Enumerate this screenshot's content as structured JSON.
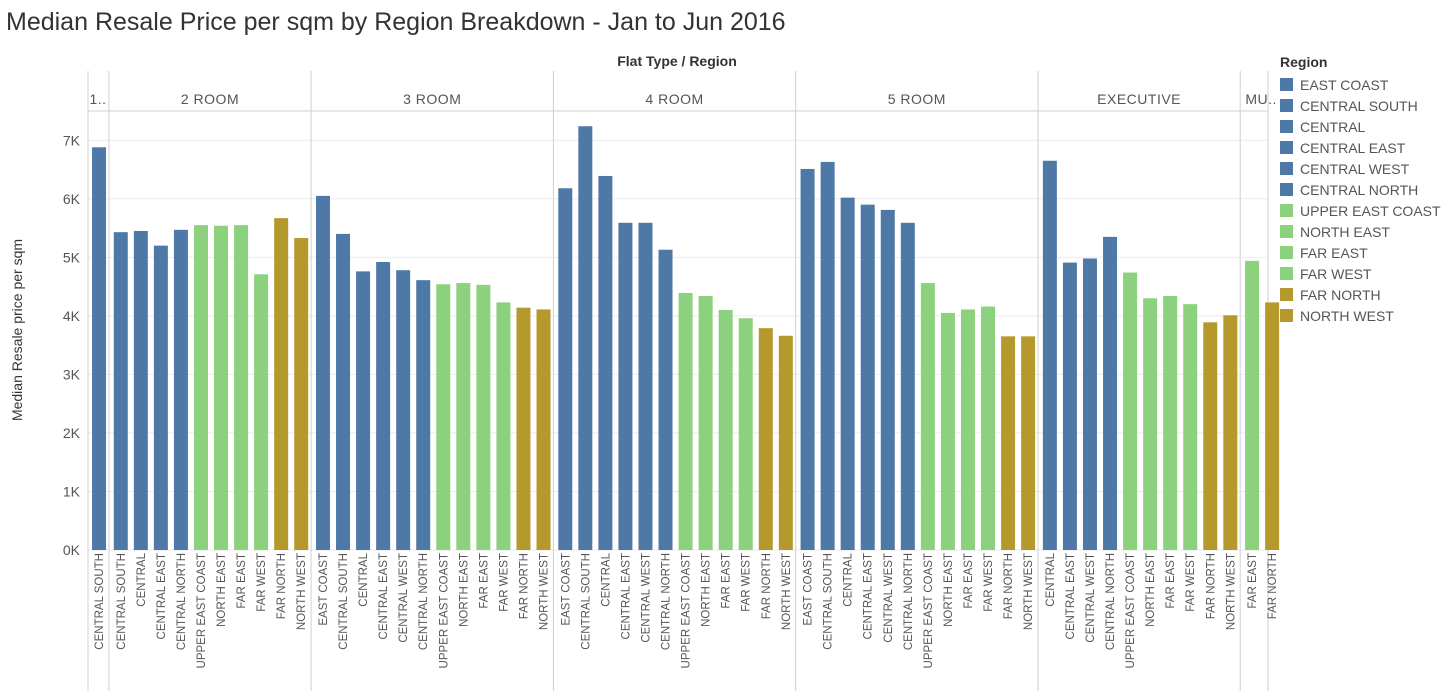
{
  "title": "Median Resale Price per sqm by Region Breakdown - Jan to Jun 2016",
  "header_label": "Flat Type  /  Region",
  "colors": {
    "blue": "#4e79a7",
    "green": "#8cd17d",
    "gold": "#b6992d",
    "grid": "#ebebeb",
    "divider": "#d0d0d0",
    "text": "#555555"
  },
  "legend": {
    "title": "Region",
    "items": [
      {
        "label": "EAST COAST",
        "color": "#4e79a7"
      },
      {
        "label": "CENTRAL SOUTH",
        "color": "#4e79a7"
      },
      {
        "label": "CENTRAL",
        "color": "#4e79a7"
      },
      {
        "label": "CENTRAL EAST",
        "color": "#4e79a7"
      },
      {
        "label": "CENTRAL WEST",
        "color": "#4e79a7"
      },
      {
        "label": "CENTRAL NORTH",
        "color": "#4e79a7"
      },
      {
        "label": "UPPER EAST COAST",
        "color": "#8cd17d"
      },
      {
        "label": "NORTH EAST",
        "color": "#8cd17d"
      },
      {
        "label": "FAR EAST",
        "color": "#8cd17d"
      },
      {
        "label": "FAR WEST",
        "color": "#8cd17d"
      },
      {
        "label": "FAR NORTH",
        "color": "#b6992d"
      },
      {
        "label": "NORTH WEST",
        "color": "#b6992d"
      }
    ]
  },
  "chart_data": {
    "type": "bar",
    "title": "Median Resale Price per sqm by Region Breakdown - Jan to Jun 2016",
    "xlabel": "Flat Type  /  Region",
    "ylabel": "Median Resale price per sqm",
    "ylim": [
      0,
      7500
    ],
    "yticks": [
      0,
      1000,
      2000,
      3000,
      4000,
      5000,
      6000,
      7000
    ],
    "ytick_labels": [
      "0K",
      "1K",
      "2K",
      "3K",
      "4K",
      "5K",
      "6K",
      "7K"
    ],
    "grid": true,
    "legend_position": "right",
    "groups": [
      {
        "name": "1..",
        "bars": [
          {
            "region": "CENTRAL SOUTH",
            "value": 6880
          }
        ]
      },
      {
        "name": "2 ROOM",
        "bars": [
          {
            "region": "CENTRAL SOUTH",
            "value": 5430
          },
          {
            "region": "CENTRAL",
            "value": 5450
          },
          {
            "region": "CENTRAL EAST",
            "value": 5200
          },
          {
            "region": "CENTRAL NORTH",
            "value": 5470
          },
          {
            "region": "UPPER EAST COAST",
            "value": 5550
          },
          {
            "region": "NORTH EAST",
            "value": 5540
          },
          {
            "region": "FAR EAST",
            "value": 5550
          },
          {
            "region": "FAR WEST",
            "value": 4710
          },
          {
            "region": "FAR NORTH",
            "value": 5670
          },
          {
            "region": "NORTH WEST",
            "value": 5330
          }
        ]
      },
      {
        "name": "3 ROOM",
        "bars": [
          {
            "region": "EAST COAST",
            "value": 6050
          },
          {
            "region": "CENTRAL SOUTH",
            "value": 5400
          },
          {
            "region": "CENTRAL",
            "value": 4760
          },
          {
            "region": "CENTRAL EAST",
            "value": 4920
          },
          {
            "region": "CENTRAL WEST",
            "value": 4780
          },
          {
            "region": "CENTRAL NORTH",
            "value": 4610
          },
          {
            "region": "UPPER EAST COAST",
            "value": 4540
          },
          {
            "region": "NORTH EAST",
            "value": 4560
          },
          {
            "region": "FAR EAST",
            "value": 4530
          },
          {
            "region": "FAR WEST",
            "value": 4230
          },
          {
            "region": "FAR NORTH",
            "value": 4140
          },
          {
            "region": "NORTH WEST",
            "value": 4110
          }
        ]
      },
      {
        "name": "4 ROOM",
        "bars": [
          {
            "region": "EAST COAST",
            "value": 6180
          },
          {
            "region": "CENTRAL SOUTH",
            "value": 7240
          },
          {
            "region": "CENTRAL",
            "value": 6390
          },
          {
            "region": "CENTRAL EAST",
            "value": 5590
          },
          {
            "region": "CENTRAL WEST",
            "value": 5590
          },
          {
            "region": "CENTRAL NORTH",
            "value": 5130
          },
          {
            "region": "UPPER EAST COAST",
            "value": 4390
          },
          {
            "region": "NORTH EAST",
            "value": 4340
          },
          {
            "region": "FAR EAST",
            "value": 4100
          },
          {
            "region": "FAR WEST",
            "value": 3960
          },
          {
            "region": "FAR NORTH",
            "value": 3790
          },
          {
            "region": "NORTH WEST",
            "value": 3660
          }
        ]
      },
      {
        "name": "5 ROOM",
        "bars": [
          {
            "region": "EAST COAST",
            "value": 6510
          },
          {
            "region": "CENTRAL SOUTH",
            "value": 6630
          },
          {
            "region": "CENTRAL",
            "value": 6020
          },
          {
            "region": "CENTRAL EAST",
            "value": 5900
          },
          {
            "region": "CENTRAL WEST",
            "value": 5810
          },
          {
            "region": "CENTRAL NORTH",
            "value": 5590
          },
          {
            "region": "UPPER EAST COAST",
            "value": 4560
          },
          {
            "region": "NORTH EAST",
            "value": 4050
          },
          {
            "region": "FAR EAST",
            "value": 4110
          },
          {
            "region": "FAR WEST",
            "value": 4160
          },
          {
            "region": "FAR NORTH",
            "value": 3650
          },
          {
            "region": "NORTH WEST",
            "value": 3650
          }
        ]
      },
      {
        "name": "EXECUTIVE",
        "bars": [
          {
            "region": "CENTRAL",
            "value": 6650
          },
          {
            "region": "CENTRAL EAST",
            "value": 4910
          },
          {
            "region": "CENTRAL WEST",
            "value": 4980
          },
          {
            "region": "CENTRAL NORTH",
            "value": 5350
          },
          {
            "region": "UPPER EAST COAST",
            "value": 4740
          },
          {
            "region": "NORTH EAST",
            "value": 4300
          },
          {
            "region": "FAR EAST",
            "value": 4340
          },
          {
            "region": "FAR WEST",
            "value": 4200
          },
          {
            "region": "FAR NORTH",
            "value": 3890
          },
          {
            "region": "NORTH WEST",
            "value": 4010
          }
        ]
      },
      {
        "name": "MU..",
        "bars": [
          {
            "region": "FAR EAST",
            "value": 4940
          },
          {
            "region": "FAR NORTH",
            "value": 4230
          }
        ]
      }
    ]
  }
}
